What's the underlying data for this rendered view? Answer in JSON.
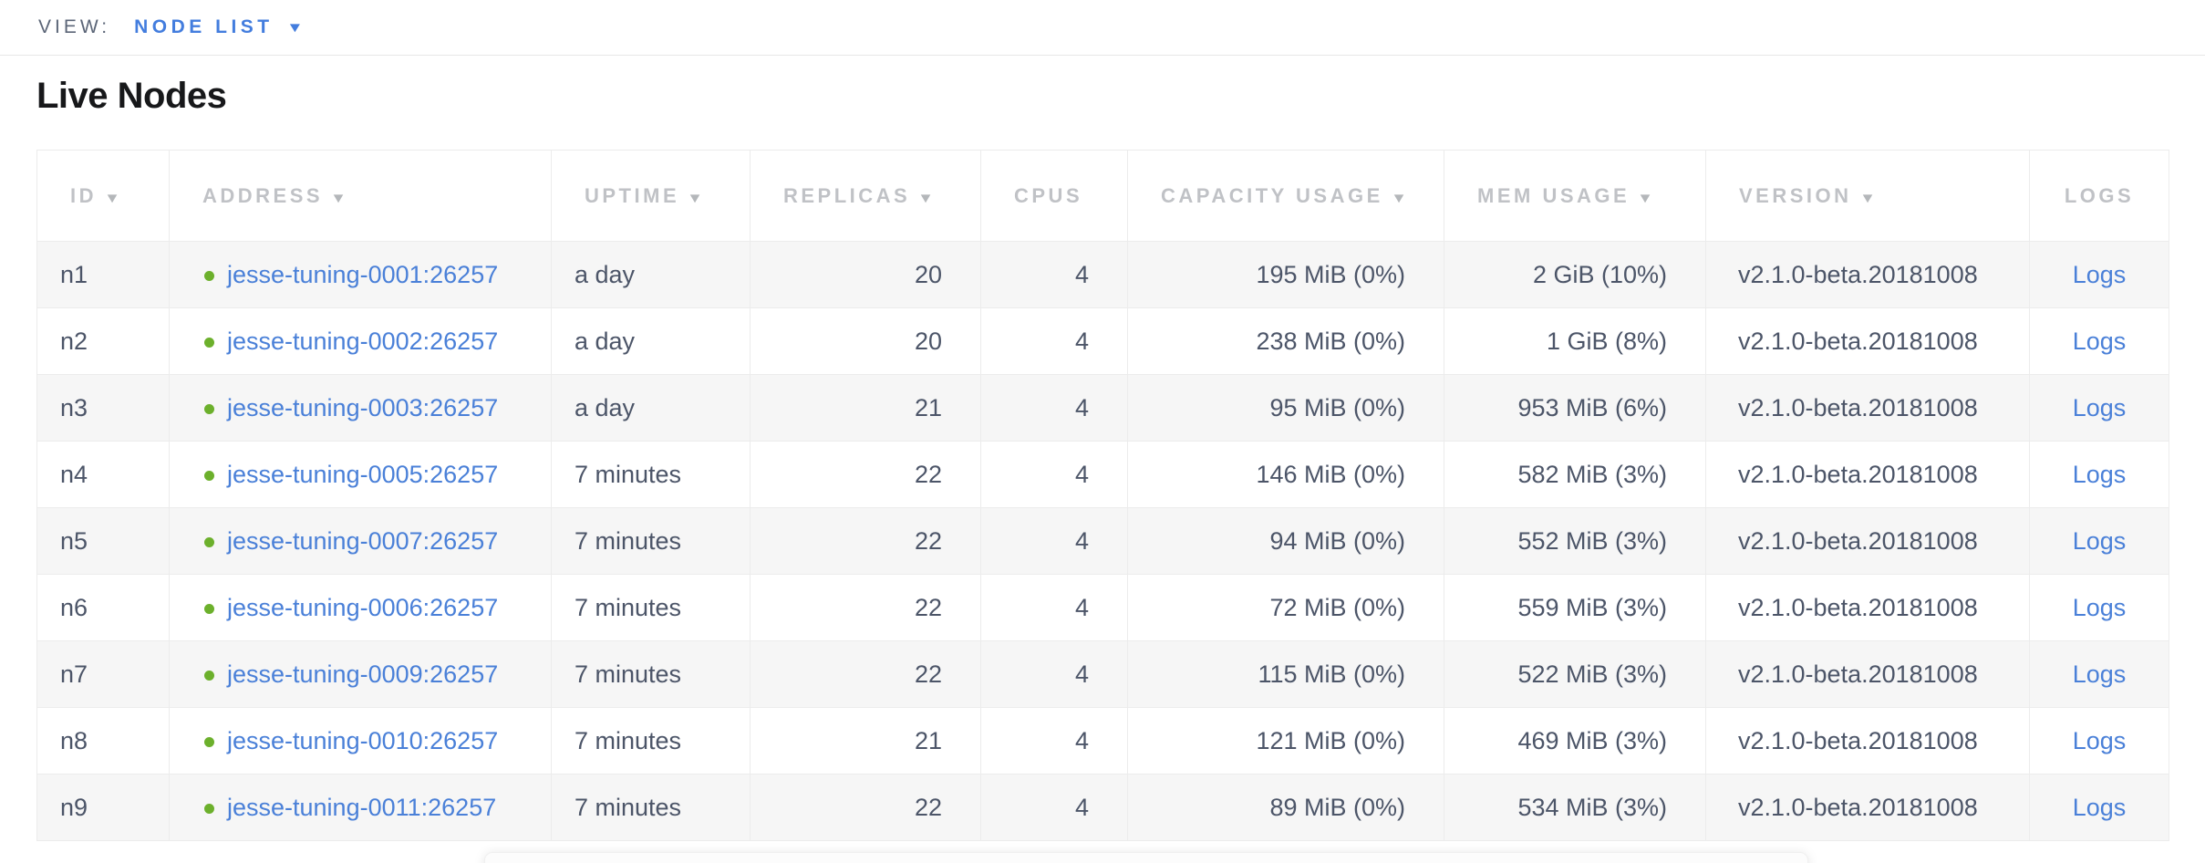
{
  "view_bar": {
    "label": "VIEW:",
    "selected": "NODE LIST"
  },
  "page": {
    "title": "Live Nodes"
  },
  "icons": {
    "sort_caret": "▼",
    "dropdown_caret": "▼",
    "node_status": "live-green-dot"
  },
  "colors": {
    "link_blue": "#4a80d8",
    "selector_blue": "#437dde",
    "status_green": "#6cb02c",
    "header_gray": "#c0c2c6",
    "body_text": "#4c5568",
    "stripe_row": "#f6f6f6",
    "border": "#ececec"
  },
  "table": {
    "columns": [
      {
        "label": "ID",
        "sortable": true
      },
      {
        "label": "ADDRESS",
        "sortable": true
      },
      {
        "label": "UPTIME",
        "sortable": true
      },
      {
        "label": "REPLICAS",
        "sortable": true
      },
      {
        "label": "CPUS",
        "sortable": false
      },
      {
        "label": "CAPACITY USAGE",
        "sortable": true
      },
      {
        "label": "MEM USAGE",
        "sortable": true
      },
      {
        "label": "VERSION",
        "sortable": true
      },
      {
        "label": "LOGS",
        "sortable": false
      }
    ],
    "rows": [
      {
        "id": "n1",
        "address": "jesse-tuning-0001:26257",
        "uptime": "a day",
        "replicas": "20",
        "cpus": "4",
        "capacity": "195 MiB (0%)",
        "mem": "2 GiB (10%)",
        "version": "v2.1.0-beta.20181008",
        "logs": "Logs"
      },
      {
        "id": "n2",
        "address": "jesse-tuning-0002:26257",
        "uptime": "a day",
        "replicas": "20",
        "cpus": "4",
        "capacity": "238 MiB (0%)",
        "mem": "1 GiB (8%)",
        "version": "v2.1.0-beta.20181008",
        "logs": "Logs"
      },
      {
        "id": "n3",
        "address": "jesse-tuning-0003:26257",
        "uptime": "a day",
        "replicas": "21",
        "cpus": "4",
        "capacity": "95 MiB (0%)",
        "mem": "953 MiB (6%)",
        "version": "v2.1.0-beta.20181008",
        "logs": "Logs"
      },
      {
        "id": "n4",
        "address": "jesse-tuning-0005:26257",
        "uptime": "7 minutes",
        "replicas": "22",
        "cpus": "4",
        "capacity": "146 MiB (0%)",
        "mem": "582 MiB (3%)",
        "version": "v2.1.0-beta.20181008",
        "logs": "Logs"
      },
      {
        "id": "n5",
        "address": "jesse-tuning-0007:26257",
        "uptime": "7 minutes",
        "replicas": "22",
        "cpus": "4",
        "capacity": "94 MiB (0%)",
        "mem": "552 MiB (3%)",
        "version": "v2.1.0-beta.20181008",
        "logs": "Logs"
      },
      {
        "id": "n6",
        "address": "jesse-tuning-0006:26257",
        "uptime": "7 minutes",
        "replicas": "22",
        "cpus": "4",
        "capacity": "72 MiB (0%)",
        "mem": "559 MiB (3%)",
        "version": "v2.1.0-beta.20181008",
        "logs": "Logs"
      },
      {
        "id": "n7",
        "address": "jesse-tuning-0009:26257",
        "uptime": "7 minutes",
        "replicas": "22",
        "cpus": "4",
        "capacity": "115 MiB (0%)",
        "mem": "522 MiB (3%)",
        "version": "v2.1.0-beta.20181008",
        "logs": "Logs"
      },
      {
        "id": "n8",
        "address": "jesse-tuning-0010:26257",
        "uptime": "7 minutes",
        "replicas": "21",
        "cpus": "4",
        "capacity": "121 MiB (0%)",
        "mem": "469 MiB (3%)",
        "version": "v2.1.0-beta.20181008",
        "logs": "Logs"
      },
      {
        "id": "n9",
        "address": "jesse-tuning-0011:26257",
        "uptime": "7 minutes",
        "replicas": "22",
        "cpus": "4",
        "capacity": "89 MiB (0%)",
        "mem": "534 MiB (3%)",
        "version": "v2.1.0-beta.20181008",
        "logs": "Logs"
      }
    ]
  }
}
